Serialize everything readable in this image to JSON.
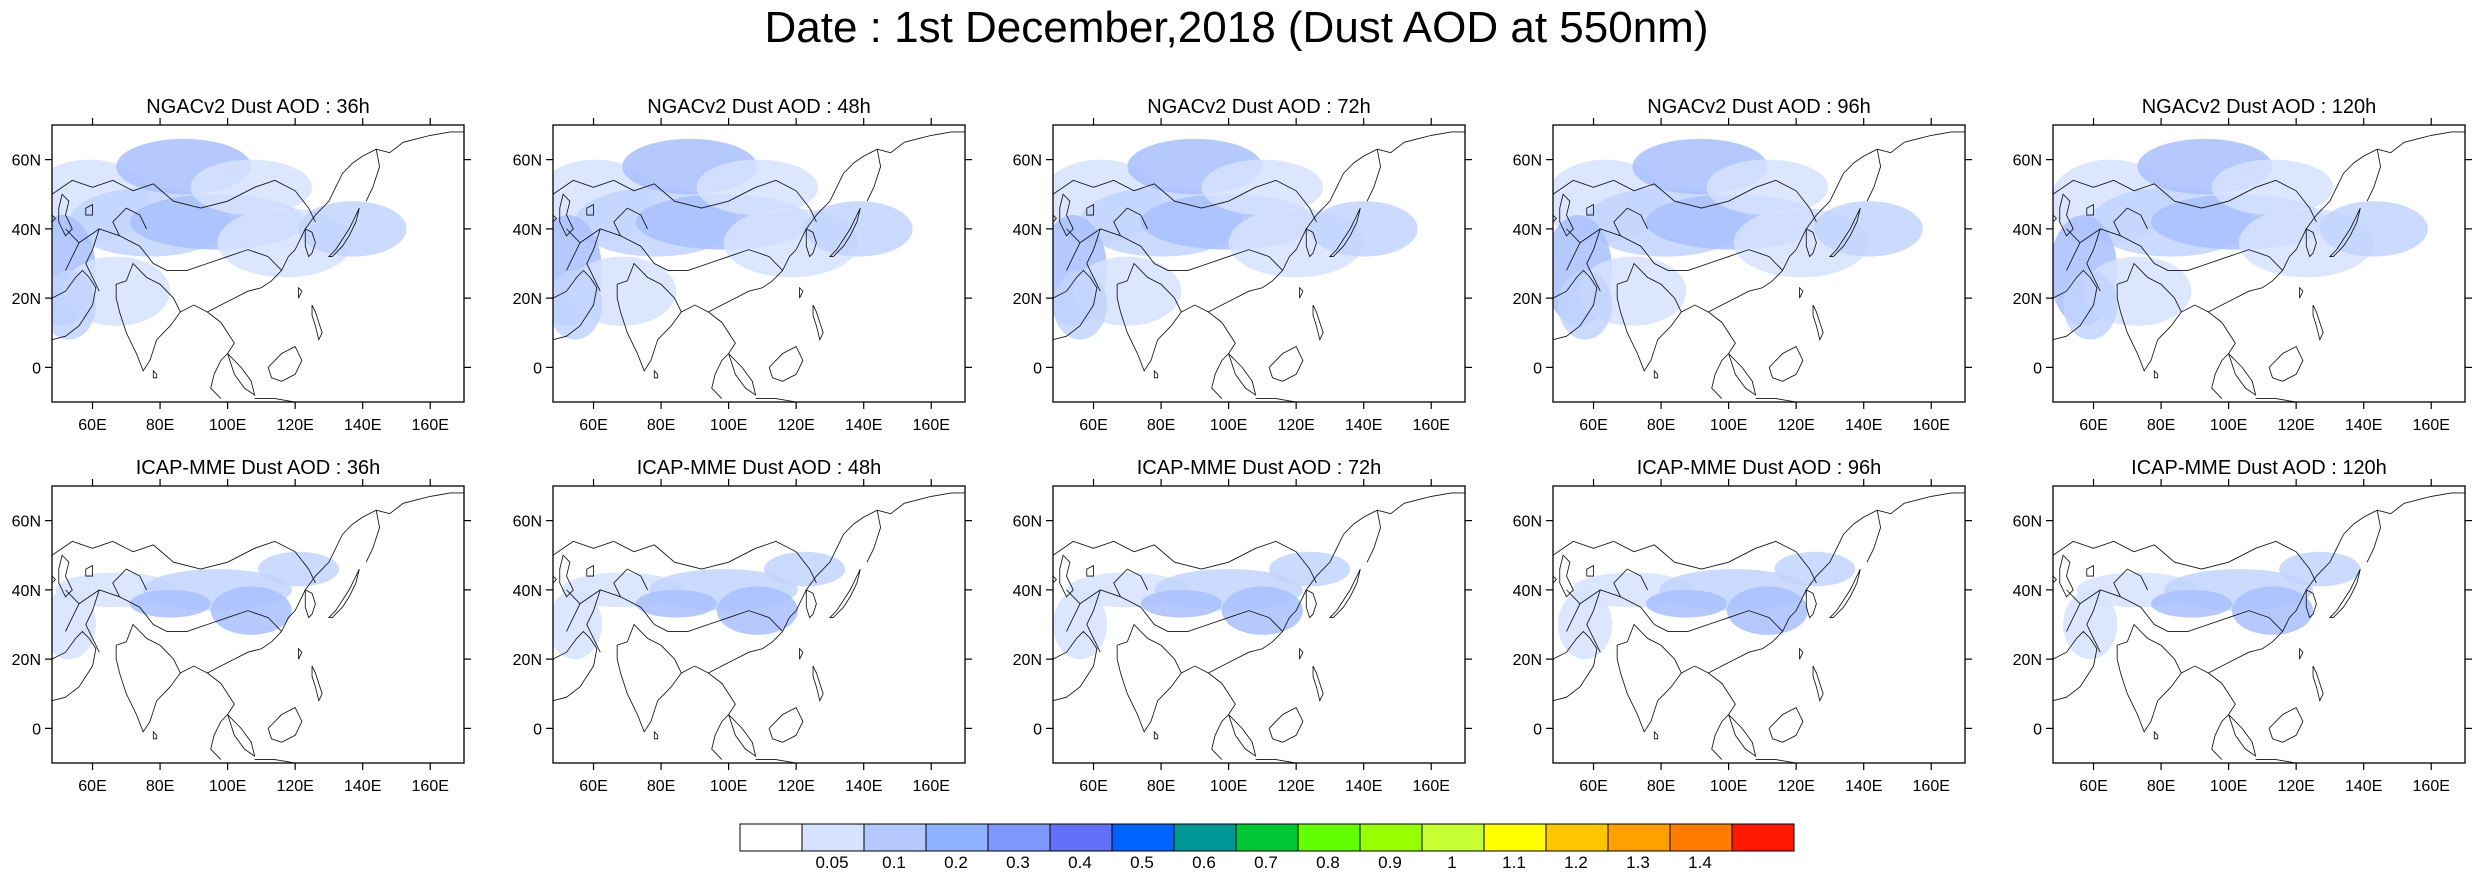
{
  "page": {
    "title": "Date : 1st December,2018 (Dust AOD at 550nm)"
  },
  "map": {
    "lon_range": [
      48,
      170
    ],
    "lat_range": [
      -10,
      70
    ],
    "lon_ticks": [
      "60E",
      "80E",
      "100E",
      "120E",
      "140E",
      "160E"
    ],
    "lat_ticks": [
      "60N",
      "40N",
      "20N",
      "0"
    ]
  },
  "panels": [
    {
      "title": "NGACv2 Dust AOD : 36h"
    },
    {
      "title": "NGACv2 Dust AOD : 48h"
    },
    {
      "title": "NGACv2 Dust AOD : 72h"
    },
    {
      "title": "NGACv2 Dust AOD : 96h"
    },
    {
      "title": "NGACv2 Dust AOD : 120h"
    },
    {
      "title": "ICAP-MME Dust AOD : 36h"
    },
    {
      "title": "ICAP-MME Dust AOD : 48h"
    },
    {
      "title": "ICAP-MME Dust AOD : 72h"
    },
    {
      "title": "ICAP-MME Dust AOD : 96h"
    },
    {
      "title": "ICAP-MME Dust AOD : 120h"
    }
  ],
  "colorbar": {
    "labels": [
      "0.05",
      "0.1",
      "0.2",
      "0.3",
      "0.4",
      "0.5",
      "0.6",
      "0.7",
      "0.8",
      "0.9",
      "1",
      "1.1",
      "1.2",
      "1.3",
      "1.4"
    ],
    "colors": [
      "#ffffff",
      "#d6e2ff",
      "#b5c9ff",
      "#8eb2ff",
      "#7f96ff",
      "#6370f8",
      "#0063ff",
      "#009696",
      "#00c633",
      "#63ff00",
      "#96ff00",
      "#c6ff33",
      "#ffff00",
      "#ffc600",
      "#ffa000",
      "#ff7c00",
      "#ff1900"
    ]
  }
}
